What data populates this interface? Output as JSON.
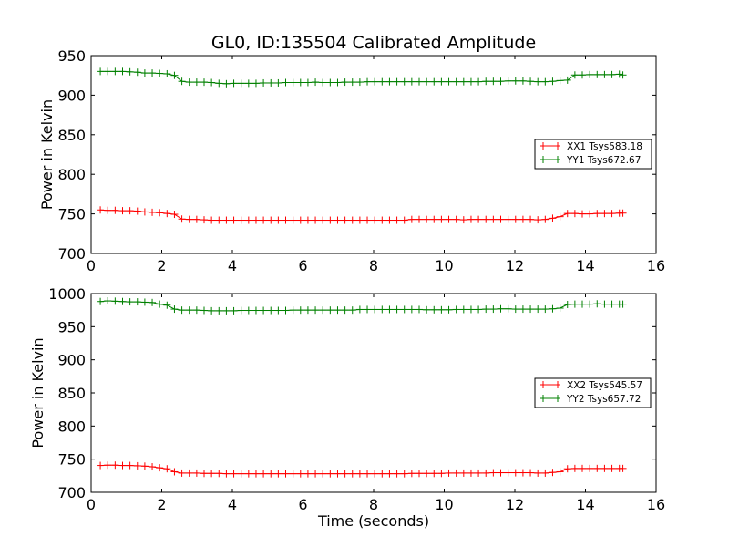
{
  "chart_data": [
    {
      "type": "line",
      "title": "GL0, ID:135504 Calibrated Amplitude",
      "xlabel": "",
      "ylabel": "Power in Kelvin",
      "xlim": [
        0,
        16
      ],
      "ylim": [
        700,
        950
      ],
      "xticks": [
        "0",
        "2",
        "4",
        "6",
        "8",
        "10",
        "12",
        "14",
        "16"
      ],
      "yticks": [
        "700",
        "750",
        "800",
        "850",
        "900",
        "950"
      ],
      "legend_position": "center-right",
      "grid": false,
      "x": [
        0.26,
        0.47,
        0.68,
        0.89,
        1.1,
        1.31,
        1.52,
        1.73,
        1.94,
        2.15,
        2.36,
        2.57,
        2.78,
        2.99,
        3.2,
        3.41,
        3.62,
        3.83,
        4.04,
        4.25,
        4.46,
        4.67,
        4.88,
        5.09,
        5.3,
        5.51,
        5.72,
        5.93,
        6.14,
        6.35,
        6.56,
        6.77,
        6.98,
        7.19,
        7.4,
        7.61,
        7.82,
        8.03,
        8.24,
        8.45,
        8.66,
        8.87,
        9.08,
        9.29,
        9.5,
        9.71,
        9.92,
        10.13,
        10.34,
        10.55,
        10.76,
        10.97,
        11.18,
        11.39,
        11.6,
        11.81,
        12.02,
        12.23,
        12.44,
        12.65,
        12.86,
        13.07,
        13.28,
        13.49,
        13.7,
        13.91,
        14.12,
        14.33,
        14.54,
        14.75,
        14.96,
        15.06
      ],
      "series": [
        {
          "name": "XX1 Tsys583.18",
          "color": "#ff0000",
          "values": [
            755,
            754.5,
            754.5,
            754,
            754,
            753.5,
            752.5,
            752,
            751.5,
            750.5,
            749.5,
            743.5,
            743,
            743,
            742.5,
            742,
            742,
            742,
            742,
            742,
            742,
            742,
            742,
            742,
            742,
            742,
            742,
            742,
            742,
            742,
            742,
            742,
            742,
            742,
            742,
            742,
            742,
            742,
            742,
            742,
            742,
            742,
            743,
            743,
            743,
            743,
            743,
            743,
            743,
            742.5,
            743,
            743,
            743,
            743,
            743,
            743,
            743,
            743,
            743,
            742.5,
            743,
            744.5,
            746.5,
            750.5,
            750.5,
            750,
            750,
            750.5,
            750.5,
            750.5,
            751,
            751
          ]
        },
        {
          "name": "YY1 Tsys672.67",
          "color": "#008000",
          "values": [
            930,
            930,
            930,
            930,
            929.5,
            929,
            928,
            928,
            927.5,
            927,
            925,
            917.5,
            916.5,
            916.5,
            916.5,
            916,
            915,
            914.5,
            915,
            915,
            915,
            915,
            915.5,
            915.5,
            915.5,
            916,
            916,
            916,
            916,
            916.5,
            916,
            916,
            916,
            916.5,
            916.5,
            916.5,
            917,
            917,
            917,
            917,
            917,
            917,
            917,
            917,
            917,
            917,
            917,
            917,
            917,
            917,
            917,
            917,
            917.5,
            917.5,
            917.5,
            918,
            918,
            918,
            917.5,
            917,
            917,
            917.5,
            918.5,
            919,
            925.5,
            925.5,
            926,
            926,
            926,
            926,
            926.5,
            925.5
          ]
        }
      ]
    },
    {
      "type": "line",
      "title": "",
      "xlabel": "Time (seconds)",
      "ylabel": "Power in Kelvin",
      "xlim": [
        0,
        16
      ],
      "ylim": [
        700,
        1000
      ],
      "xticks": [
        "0",
        "2",
        "4",
        "6",
        "8",
        "10",
        "12",
        "14",
        "16"
      ],
      "yticks": [
        "700",
        "750",
        "800",
        "850",
        "900",
        "950",
        "1000"
      ],
      "legend_position": "center-right",
      "grid": false,
      "x": [
        0.26,
        0.47,
        0.68,
        0.89,
        1.1,
        1.31,
        1.52,
        1.73,
        1.94,
        2.15,
        2.36,
        2.57,
        2.78,
        2.99,
        3.2,
        3.41,
        3.62,
        3.83,
        4.04,
        4.25,
        4.46,
        4.67,
        4.88,
        5.09,
        5.3,
        5.51,
        5.72,
        5.93,
        6.14,
        6.35,
        6.56,
        6.77,
        6.98,
        7.19,
        7.4,
        7.61,
        7.82,
        8.03,
        8.24,
        8.45,
        8.66,
        8.87,
        9.08,
        9.29,
        9.5,
        9.71,
        9.92,
        10.13,
        10.34,
        10.55,
        10.76,
        10.97,
        11.18,
        11.39,
        11.6,
        11.81,
        12.02,
        12.23,
        12.44,
        12.65,
        12.86,
        13.07,
        13.28,
        13.49,
        13.7,
        13.91,
        14.12,
        14.33,
        14.54,
        14.75,
        14.96,
        15.06
      ],
      "series": [
        {
          "name": "XX2 Tsys545.57",
          "color": "#ff0000",
          "values": [
            740.5,
            741,
            741,
            740.5,
            740.5,
            740,
            739.5,
            738.5,
            737,
            735.5,
            731,
            729,
            729,
            729,
            728.5,
            728.5,
            728.5,
            728,
            728,
            728,
            728,
            728,
            728,
            728,
            728,
            728,
            728,
            728,
            728,
            728,
            728,
            728,
            728,
            728,
            728,
            728,
            728,
            728,
            728,
            728,
            728,
            728,
            728.5,
            728.5,
            728.5,
            728.5,
            728.5,
            729,
            729,
            729,
            729,
            729,
            729,
            729.5,
            729.5,
            729.5,
            729.5,
            729.5,
            729.5,
            729,
            729,
            730,
            731,
            735.5,
            736,
            736,
            736,
            736,
            736,
            736,
            736,
            736
          ]
        },
        {
          "name": "YY2 Tsys657.72",
          "color": "#008000",
          "values": [
            988,
            989,
            988.5,
            988,
            987.5,
            987.5,
            987,
            986.5,
            984,
            982.5,
            976.5,
            975,
            975,
            975,
            974.5,
            974,
            974,
            974,
            974,
            974.5,
            974.5,
            974.5,
            974.5,
            974.5,
            974.5,
            974.5,
            975,
            975,
            975,
            975,
            975,
            975,
            975,
            975,
            975,
            976,
            976,
            976,
            976,
            976,
            976,
            976,
            976,
            976,
            975.5,
            975.5,
            975.5,
            975.5,
            976,
            976,
            976,
            976,
            976.5,
            976.5,
            977,
            977,
            976.5,
            976.5,
            976.5,
            976.5,
            976.5,
            977,
            978,
            983.5,
            984,
            984,
            984,
            984.5,
            984,
            984,
            984,
            984
          ]
        }
      ]
    }
  ]
}
